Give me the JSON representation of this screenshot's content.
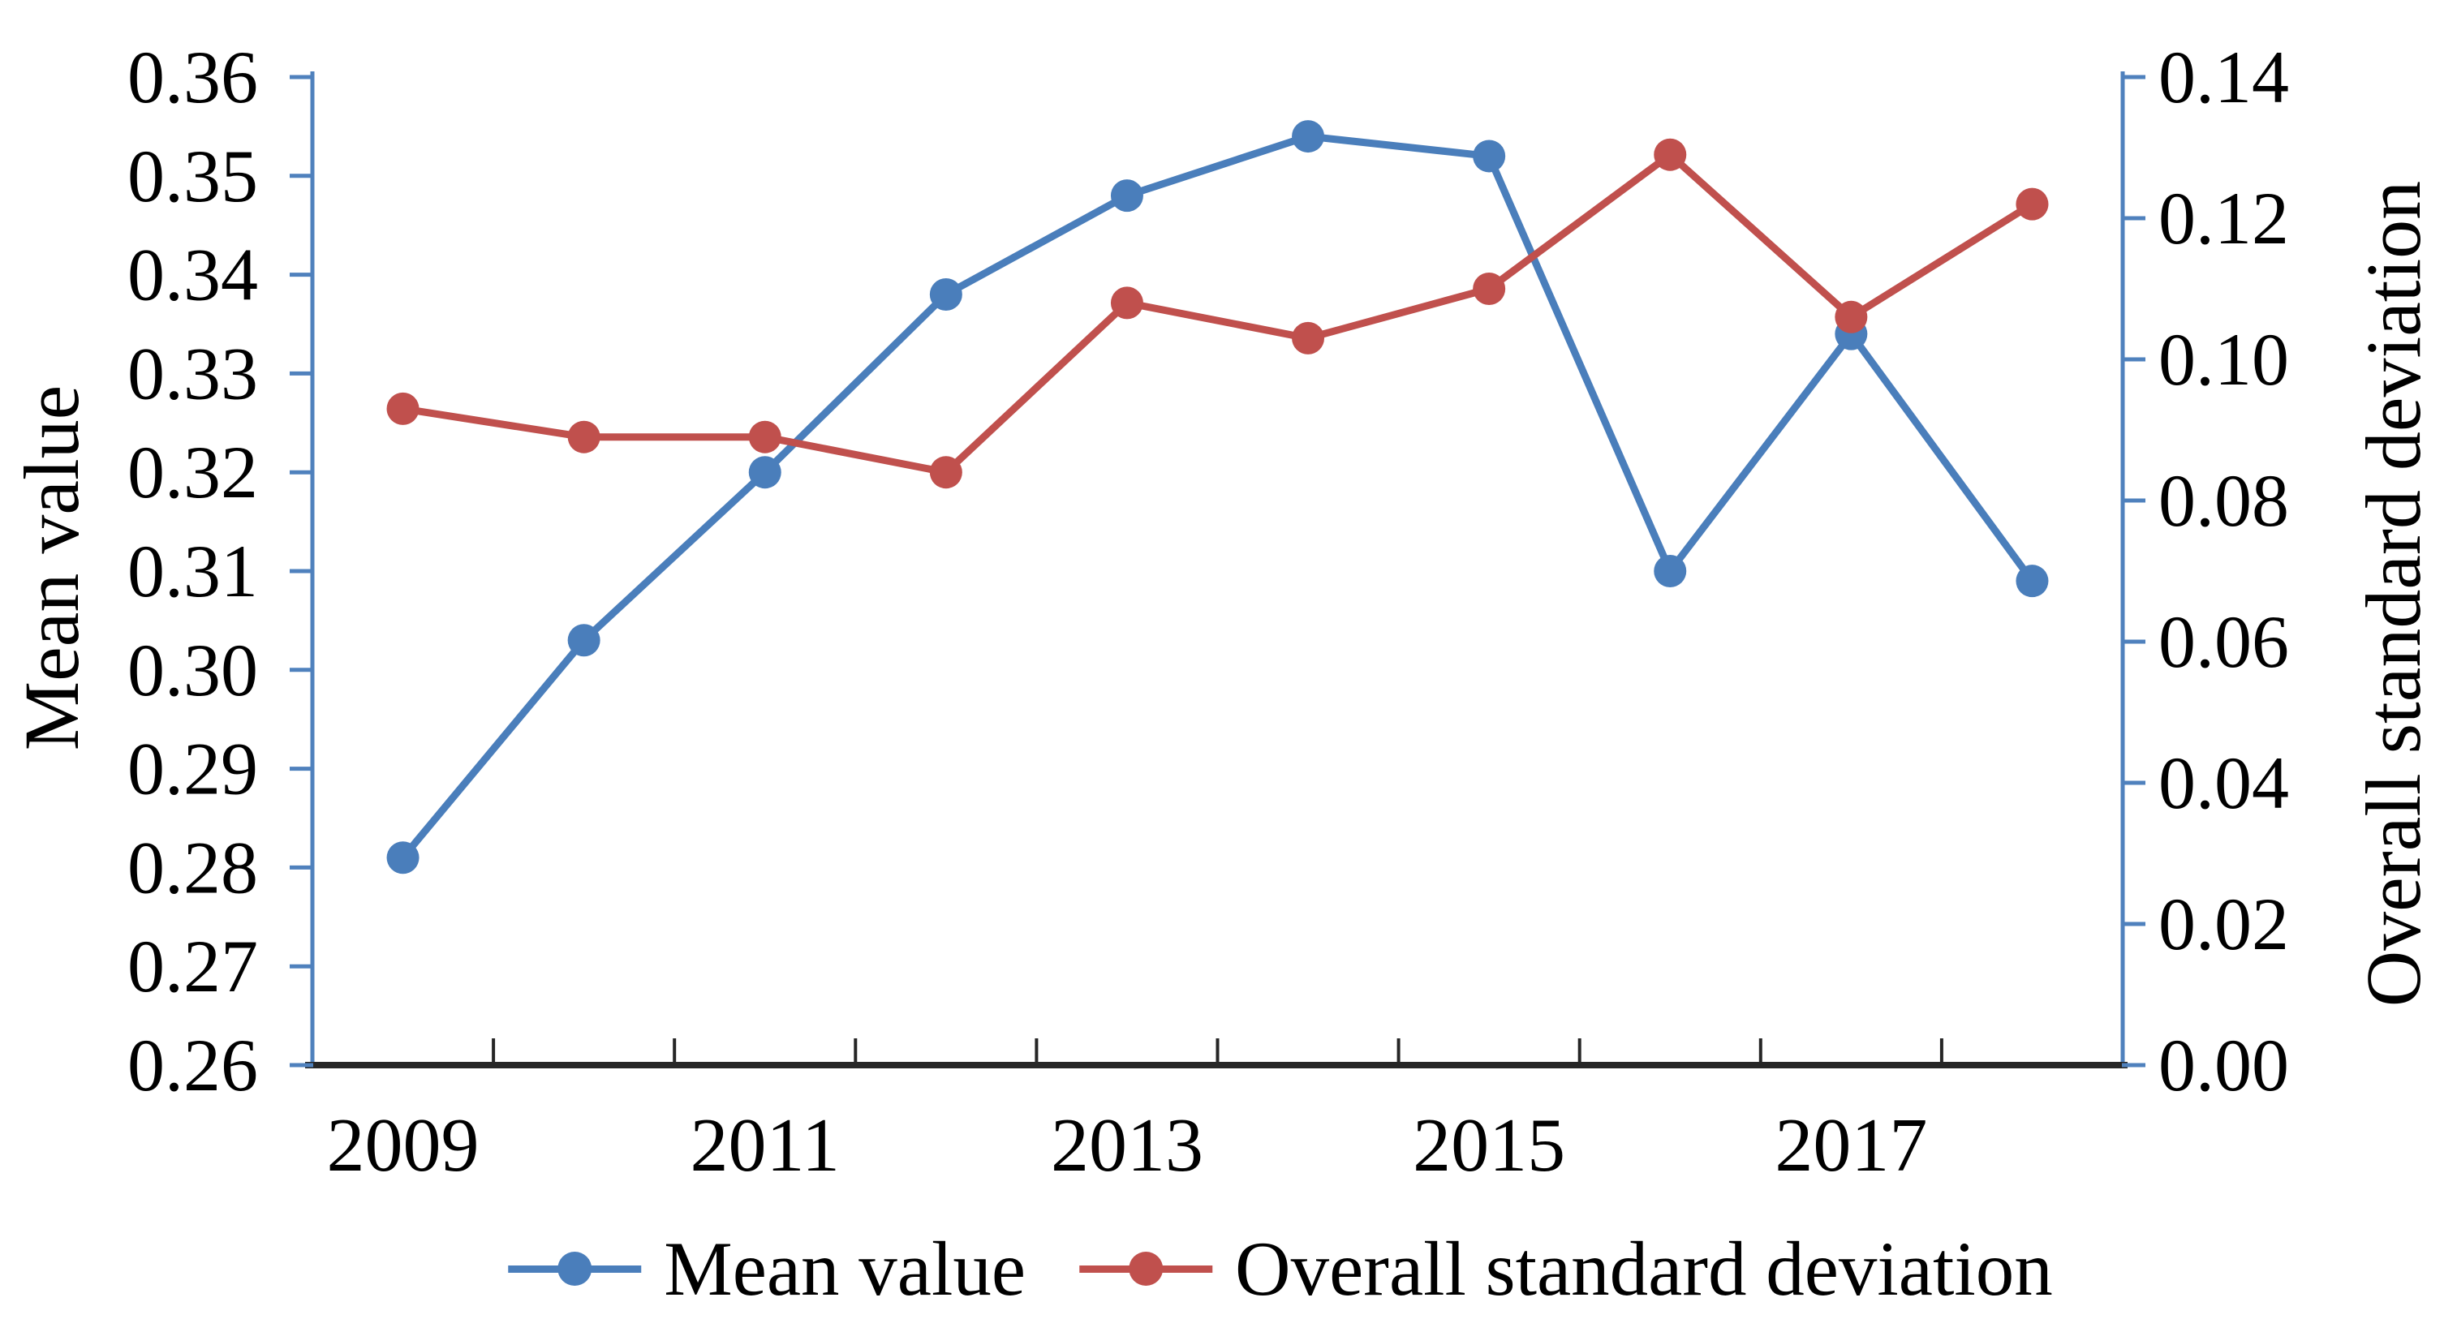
{
  "figure": {
    "background": "#ffffff",
    "colors": {
      "mean_series": "#4a7ebb",
      "std_series": "#c0504d",
      "axis_line": "#4f81bd",
      "x_axis_line": "#262626",
      "text": "#000000"
    }
  },
  "chart_data": {
    "type": "line",
    "title": "",
    "x": [
      2009,
      2010,
      2011,
      2012,
      2013,
      2014,
      2015,
      2016,
      2017,
      2018
    ],
    "x_axis": {
      "tick_labels": [
        "2009",
        "2011",
        "2013",
        "2015",
        "2017"
      ],
      "ticks_at_category_boundaries": true
    },
    "left_axis": {
      "label": "Mean value",
      "min": 0.26,
      "max": 0.36,
      "step": 0.01,
      "tick_labels": [
        "0.26",
        "0.27",
        "0.28",
        "0.29",
        "0.30",
        "0.31",
        "0.32",
        "0.33",
        "0.34",
        "0.35",
        "0.36"
      ]
    },
    "right_axis": {
      "label": "Overall standard deviation",
      "min": 0.0,
      "max": 0.14,
      "step": 0.02,
      "tick_labels": [
        "0.00",
        "0.02",
        "0.04",
        "0.06",
        "0.08",
        "0.10",
        "0.12",
        "0.14"
      ]
    },
    "series": [
      {
        "name": "Mean value",
        "axis": "left",
        "color": "#4a7ebb",
        "marker": "circle",
        "values": [
          0.281,
          0.303,
          0.32,
          0.338,
          0.348,
          0.354,
          0.352,
          0.31,
          0.334,
          0.309
        ]
      },
      {
        "name": "Overall standard deviation",
        "axis": "right",
        "color": "#c0504d",
        "marker": "circle",
        "values": [
          0.093,
          0.089,
          0.089,
          0.084,
          0.108,
          0.103,
          0.11,
          0.129,
          0.106,
          0.122
        ]
      }
    ],
    "legend": {
      "position": "bottom",
      "items": [
        {
          "label": "Mean value",
          "color": "#4a7ebb"
        },
        {
          "label": "Overall standard deviation",
          "color": "#c0504d"
        }
      ]
    },
    "grid": false
  }
}
